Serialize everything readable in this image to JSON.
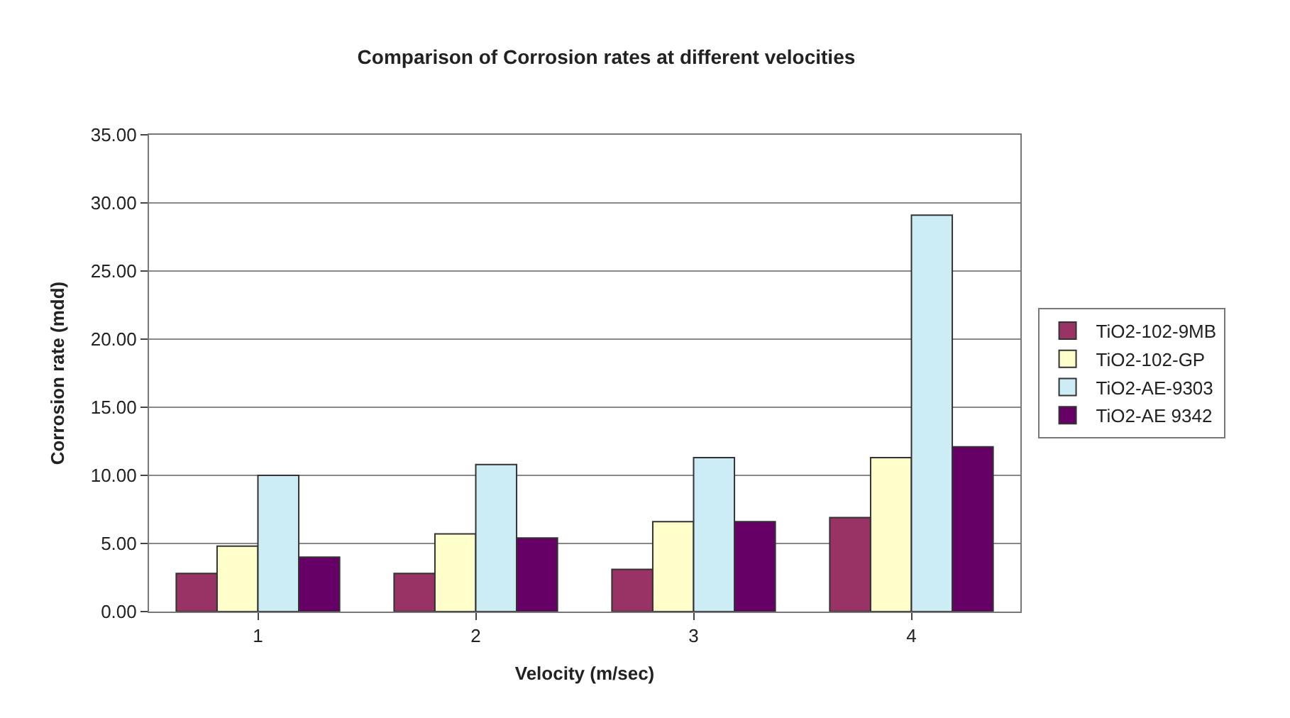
{
  "chart_data": {
    "type": "bar",
    "title": "Comparison of Corrosion rates at different velocities",
    "xlabel": "Velocity (m/sec)",
    "ylabel": "Corrosion rate (mdd)",
    "categories": [
      "1",
      "2",
      "3",
      "4"
    ],
    "series": [
      {
        "name": "TiO2-102-9MB",
        "color": "#993366",
        "values": [
          2.8,
          2.8,
          3.1,
          6.9
        ]
      },
      {
        "name": "TiO2-102-GP",
        "color": "#ffffcc",
        "values": [
          4.8,
          5.7,
          6.6,
          11.3
        ]
      },
      {
        "name": "TiO2-AE-9303",
        "color": "#ccecf6",
        "values": [
          10.0,
          10.8,
          11.3,
          29.1
        ]
      },
      {
        "name": "TiO2-AE 9342",
        "color": "#660066",
        "values": [
          4.0,
          5.4,
          6.6,
          12.1
        ]
      }
    ],
    "ylim": [
      0,
      35
    ],
    "yticks": [
      {
        "value": 0,
        "label": "0.00"
      },
      {
        "value": 5,
        "label": "5.00"
      },
      {
        "value": 10,
        "label": "10.00"
      },
      {
        "value": 15,
        "label": "15.00"
      },
      {
        "value": 20,
        "label": "20.00"
      },
      {
        "value": 25,
        "label": "25.00"
      },
      {
        "value": 30,
        "label": "30.00"
      },
      {
        "value": 35,
        "label": "35.00"
      }
    ],
    "grid": "y",
    "legend": "right"
  }
}
